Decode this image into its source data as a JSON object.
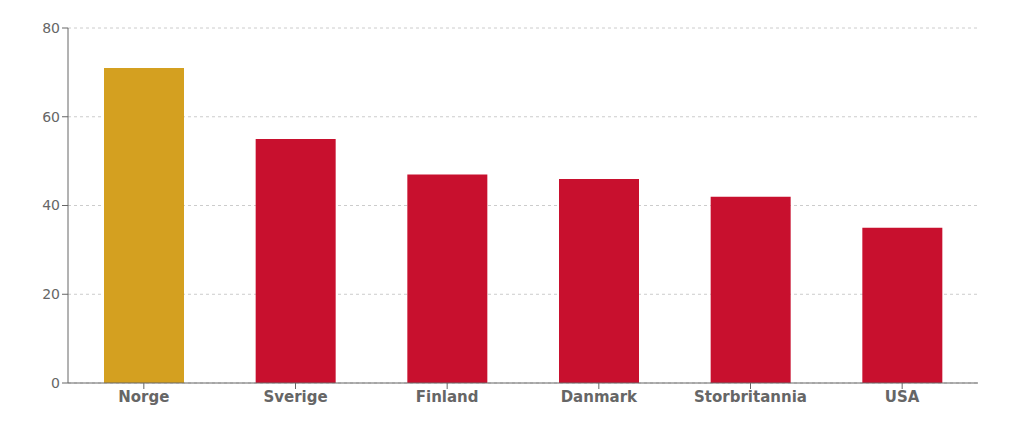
{
  "chart_data": {
    "type": "bar",
    "categories": [
      "Norge",
      "Sverige",
      "Finland",
      "Danmark",
      "Storbritannia",
      "USA"
    ],
    "values": [
      71,
      55,
      47,
      46,
      42,
      35
    ],
    "colors": [
      "#D4A020",
      "#C8102E",
      "#C8102E",
      "#C8102E",
      "#C8102E",
      "#C8102E"
    ],
    "ylim": [
      0,
      80
    ],
    "yticks": [
      0,
      20,
      40,
      60,
      80
    ],
    "grid": true
  }
}
